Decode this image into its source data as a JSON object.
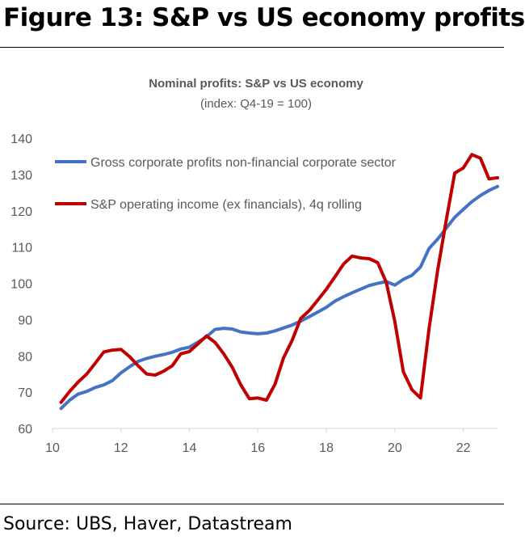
{
  "figure": {
    "title": "Figure 13: S&P vs US economy profits",
    "source": "Source: UBS, Haver, Datastream"
  },
  "colors": {
    "blue": "#4472C4",
    "red": "#C00000",
    "text": "#595959",
    "axis": "#D9D9D9"
  },
  "chart_data": {
    "type": "line",
    "title": "Nominal profits: S&P vs US economy",
    "subtitle": "(index: Q4-19 = 100)",
    "xlabel": "",
    "ylabel": "",
    "xlim": [
      2010,
      2023
    ],
    "ylim": [
      60,
      140
    ],
    "x_ticks": [
      10,
      12,
      14,
      16,
      18,
      20,
      22
    ],
    "y_ticks": [
      60,
      70,
      80,
      90,
      100,
      110,
      120,
      130,
      140
    ],
    "grid": false,
    "legend": "top-left, inside plot",
    "series": [
      {
        "name": "Gross corporate profits non-financial corporate sector",
        "color": "#4472C4",
        "x": [
          2010.25,
          2010.5,
          2010.75,
          2011.0,
          2011.25,
          2011.5,
          2011.75,
          2012.0,
          2012.25,
          2012.5,
          2012.75,
          2013.0,
          2013.25,
          2013.5,
          2013.75,
          2014.0,
          2014.25,
          2014.5,
          2014.75,
          2015.0,
          2015.25,
          2015.5,
          2015.75,
          2016.0,
          2016.25,
          2016.5,
          2016.75,
          2017.0,
          2017.25,
          2017.5,
          2017.75,
          2018.0,
          2018.25,
          2018.5,
          2018.75,
          2019.0,
          2019.25,
          2019.5,
          2019.75,
          2020.0,
          2020.25,
          2020.5,
          2020.75,
          2021.0,
          2021.25,
          2021.5,
          2021.75,
          2022.0,
          2022.25,
          2022.5,
          2022.75,
          2023.0
        ],
        "y": [
          65.5,
          67.8,
          69.5,
          70.2,
          71.3,
          72.0,
          73.2,
          75.3,
          77.0,
          78.5,
          79.3,
          79.9,
          80.4,
          81.0,
          81.9,
          82.4,
          83.8,
          85.3,
          87.3,
          87.6,
          87.4,
          86.6,
          86.3,
          86.1,
          86.3,
          86.9,
          87.7,
          88.5,
          89.6,
          90.8,
          92.1,
          93.4,
          95.1,
          96.3,
          97.4,
          98.4,
          99.4,
          100.0,
          100.5,
          99.5,
          101.1,
          102.2,
          104.5,
          109.6,
          112.2,
          115.2,
          118.2,
          120.4,
          122.5,
          124.2,
          125.6,
          126.7
        ]
      },
      {
        "name": "S&P operating income (ex financials), 4q rolling",
        "color": "#C00000",
        "x": [
          2010.25,
          2010.5,
          2010.75,
          2011.0,
          2011.25,
          2011.5,
          2011.75,
          2012.0,
          2012.25,
          2012.5,
          2012.75,
          2013.0,
          2013.25,
          2013.5,
          2013.75,
          2014.0,
          2014.25,
          2014.5,
          2014.75,
          2015.0,
          2015.25,
          2015.5,
          2015.75,
          2016.0,
          2016.25,
          2016.5,
          2016.75,
          2017.0,
          2017.25,
          2017.5,
          2017.75,
          2018.0,
          2018.25,
          2018.5,
          2018.75,
          2019.0,
          2019.25,
          2019.5,
          2019.75,
          2020.0,
          2020.25,
          2020.5,
          2020.75,
          2021.0,
          2021.25,
          2021.5,
          2021.75,
          2022.0,
          2022.25,
          2022.5,
          2022.75,
          2023.0
        ],
        "y": [
          67.2,
          70.2,
          72.8,
          75.0,
          78.0,
          81.1,
          81.6,
          81.8,
          79.8,
          77.3,
          75.0,
          74.7,
          75.8,
          77.3,
          80.6,
          81.2,
          83.3,
          85.5,
          83.7,
          80.6,
          76.9,
          72.0,
          68.2,
          68.4,
          67.8,
          72.2,
          79.5,
          84.3,
          90.3,
          92.5,
          95.4,
          98.4,
          101.8,
          105.3,
          107.5,
          107.0,
          106.8,
          105.7,
          100.2,
          89.5,
          75.6,
          70.7,
          68.4,
          87.5,
          103.5,
          117.3,
          130.4,
          131.8,
          135.5,
          134.5,
          128.8,
          129.1
        ]
      }
    ]
  }
}
